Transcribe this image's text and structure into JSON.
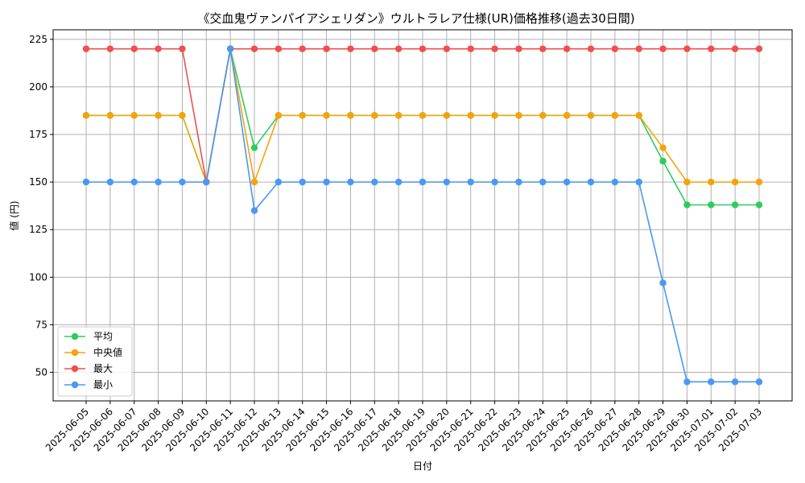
{
  "chart_data": {
    "type": "line",
    "title": "《交血鬼ヴァンパイアシェリダン》ウルトラレア仕様(UR)価格推移(過去30日間)",
    "xlabel": "日付",
    "ylabel": "値 (円)",
    "ylim": [
      35,
      230
    ],
    "yticks": [
      50,
      75,
      100,
      125,
      150,
      175,
      200,
      225
    ],
    "grid": true,
    "legend": "lower-left",
    "categories": [
      "2025-06-05",
      "2025-06-06",
      "2025-06-07",
      "2025-06-08",
      "2025-06-09",
      "2025-06-10",
      "2025-06-11",
      "2025-06-12",
      "2025-06-13",
      "2025-06-14",
      "2025-06-15",
      "2025-06-16",
      "2025-06-17",
      "2025-06-18",
      "2025-06-19",
      "2025-06-20",
      "2025-06-21",
      "2025-06-22",
      "2025-06-23",
      "2025-06-24",
      "2025-06-25",
      "2025-06-26",
      "2025-06-27",
      "2025-06-28",
      "2025-06-29",
      "2025-06-30",
      "2025-07-01",
      "2025-07-02",
      "2025-07-03"
    ],
    "series": [
      {
        "name": "平均",
        "color": "#2ecc5f",
        "values": [
          185,
          185,
          185,
          185,
          185,
          150,
          220,
          168,
          185,
          185,
          185,
          185,
          185,
          185,
          185,
          185,
          185,
          185,
          185,
          185,
          185,
          185,
          185,
          185,
          161,
          138,
          138,
          138,
          138
        ]
      },
      {
        "name": "中央値",
        "color": "#f5a30a",
        "values": [
          185,
          185,
          185,
          185,
          185,
          150,
          220,
          150,
          185,
          185,
          185,
          185,
          185,
          185,
          185,
          185,
          185,
          185,
          185,
          185,
          185,
          185,
          185,
          185,
          168,
          150,
          150,
          150,
          150
        ]
      },
      {
        "name": "最大",
        "color": "#ef4f4f",
        "values": [
          220,
          220,
          220,
          220,
          220,
          150,
          220,
          220,
          220,
          220,
          220,
          220,
          220,
          220,
          220,
          220,
          220,
          220,
          220,
          220,
          220,
          220,
          220,
          220,
          220,
          220,
          220,
          220,
          220
        ]
      },
      {
        "name": "最小",
        "color": "#4a98f0",
        "values": [
          150,
          150,
          150,
          150,
          150,
          150,
          220,
          135,
          150,
          150,
          150,
          150,
          150,
          150,
          150,
          150,
          150,
          150,
          150,
          150,
          150,
          150,
          150,
          150,
          97,
          45,
          45,
          45,
          45
        ]
      }
    ]
  }
}
